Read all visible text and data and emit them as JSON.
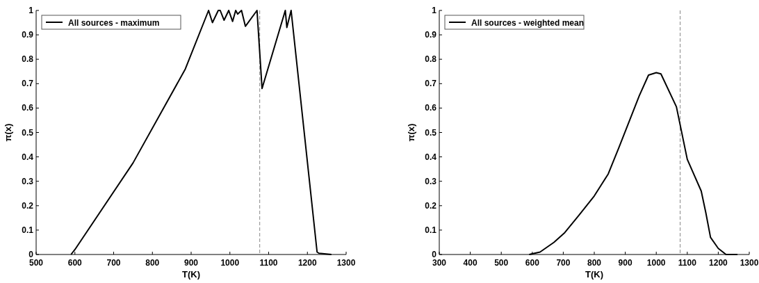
{
  "chart_data": [
    {
      "type": "line",
      "xlabel": "T(K)",
      "ylabel": "π(x)",
      "xlim": [
        500,
        1300
      ],
      "xticks": [
        500,
        600,
        700,
        800,
        900,
        1000,
        1100,
        1200,
        1300
      ],
      "ylim": [
        0,
        1
      ],
      "yticks": [
        0,
        0.1,
        0.2,
        0.3,
        0.4,
        0.5,
        0.6,
        0.7,
        0.8,
        0.9,
        1
      ],
      "legend": "top left",
      "line_style": "solid",
      "grid": false,
      "series": [
        {
          "name": "All sources - maximum",
          "color": "#000000",
          "x": [
            590,
            600,
            750,
            885,
            945,
            955,
            970,
            975,
            985,
            997,
            1007,
            1015,
            1020,
            1030,
            1040,
            1070,
            1083,
            1143,
            1147,
            1158,
            1225,
            1230,
            1262
          ],
          "values": [
            0,
            0.02,
            0.375,
            0.76,
            1,
            0.95,
            1,
            1,
            0.96,
            1,
            0.955,
            1,
            0.985,
            1,
            0.935,
            1,
            0.68,
            1,
            0.93,
            1,
            0.01,
            0.005,
            0
          ]
        }
      ],
      "ref_lines": [
        {
          "axis": "x",
          "value": 1077,
          "color": "#888888",
          "line_style": "dashed"
        }
      ]
    },
    {
      "type": "line",
      "xlabel": "T(K)",
      "ylabel": "π(x)",
      "xlim": [
        300,
        1300
      ],
      "xticks": [
        300,
        400,
        500,
        600,
        700,
        800,
        900,
        1000,
        1100,
        1200,
        1300
      ],
      "ylim": [
        0,
        1
      ],
      "yticks": [
        0,
        0.1,
        0.2,
        0.3,
        0.4,
        0.5,
        0.6,
        0.7,
        0.8,
        0.9,
        1
      ],
      "legend": "top left",
      "line_style": "solid",
      "grid": false,
      "series": [
        {
          "name": "All sources - weighted mean",
          "color": "#000000",
          "x": [
            590,
            625,
            670,
            705,
            750,
            800,
            845,
            880,
            945,
            975,
            1000,
            1015,
            1065,
            1100,
            1145,
            1160,
            1175,
            1200,
            1225,
            1262
          ],
          "values": [
            0,
            0.01,
            0.05,
            0.09,
            0.16,
            0.24,
            0.33,
            0.44,
            0.65,
            0.735,
            0.745,
            0.74,
            0.605,
            0.39,
            0.26,
            0.17,
            0.07,
            0.025,
            0,
            0
          ]
        }
      ],
      "ref_lines": [
        {
          "axis": "x",
          "value": 1077,
          "color": "#888888",
          "line_style": "dashed"
        }
      ]
    }
  ]
}
